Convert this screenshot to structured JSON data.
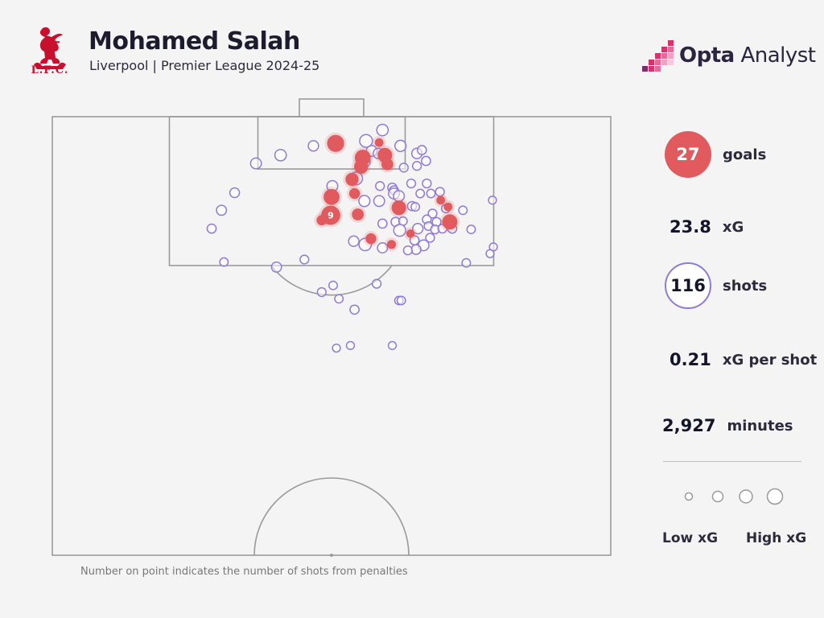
{
  "header": {
    "crest_text": "L.F.C.",
    "player_name": "Mohamed Salah",
    "subtitle": "Liverpool | Premier League 2024-25",
    "brand": {
      "part1": "Opta",
      "part2": " Analyst"
    }
  },
  "stats": {
    "goals_value": "27",
    "goals_label": "goals",
    "xg_value": "23.8",
    "xg_label": "xG",
    "shots_value": "116",
    "shots_label": "shots",
    "xg_per_shot_value": "0.21",
    "xg_per_shot_label": "xG per shot",
    "minutes_value": "2,927",
    "minutes_label": "minutes"
  },
  "legend": {
    "low_label": "Low xG",
    "high_label": "High xG"
  },
  "footnote": "Number on point indicates the number of shots from penalties",
  "colors": {
    "goal": "#e05a5e",
    "miss": "#8f7bd6",
    "pitch_line": "#9a9a9a",
    "brand_pink": "#d6336c"
  },
  "chart_data": {
    "type": "scatter",
    "title": "Mohamed Salah",
    "subtitle": "Liverpool | Premier League 2024-25",
    "xlabel": "",
    "ylabel": "",
    "pitch": {
      "view": "attacking half",
      "width_m": 68,
      "length_m": 52.5
    },
    "units": "x = metres across pitch from left touchline, y = metres from goal line, xg = expected goals per shot",
    "series": [
      {
        "name": "goals",
        "points": [
          {
            "x": 34.5,
            "y": 3.2,
            "xg": 0.55
          },
          {
            "x": 37.8,
            "y": 4.9,
            "xg": 0.45
          },
          {
            "x": 40.5,
            "y": 4.6,
            "xg": 0.35
          },
          {
            "x": 40.8,
            "y": 5.7,
            "xg": 0.18
          },
          {
            "x": 39.8,
            "y": 3.1,
            "xg": 0.05
          },
          {
            "x": 37.6,
            "y": 6.0,
            "xg": 0.3
          },
          {
            "x": 36.5,
            "y": 7.5,
            "xg": 0.25
          },
          {
            "x": 34.0,
            "y": 9.6,
            "xg": 0.45
          },
          {
            "x": 36.8,
            "y": 9.2,
            "xg": 0.12
          },
          {
            "x": 42.2,
            "y": 10.9,
            "xg": 0.35
          },
          {
            "x": 33.9,
            "y": 11.8,
            "xg": 0.76,
            "label": "9"
          },
          {
            "x": 32.8,
            "y": 12.4,
            "xg": 0.1
          },
          {
            "x": 37.2,
            "y": 11.7,
            "xg": 0.18
          },
          {
            "x": 47.3,
            "y": 10.0,
            "xg": 0.05
          },
          {
            "x": 48.2,
            "y": 10.8,
            "xg": 0.05
          },
          {
            "x": 48.4,
            "y": 12.6,
            "xg": 0.4
          },
          {
            "x": 43.6,
            "y": 14.0,
            "xg": 0.04
          },
          {
            "x": 38.8,
            "y": 14.6,
            "xg": 0.12
          },
          {
            "x": 41.3,
            "y": 15.3,
            "xg": 0.06
          }
        ]
      },
      {
        "name": "shots",
        "points": [
          {
            "x": 40.2,
            "y": 1.6,
            "xg": 0.15
          },
          {
            "x": 38.2,
            "y": 2.9,
            "xg": 0.22
          },
          {
            "x": 42.4,
            "y": 3.5,
            "xg": 0.14
          },
          {
            "x": 31.8,
            "y": 3.5,
            "xg": 0.1
          },
          {
            "x": 27.8,
            "y": 4.6,
            "xg": 0.15
          },
          {
            "x": 38.9,
            "y": 4.1,
            "xg": 0.12
          },
          {
            "x": 39.7,
            "y": 4.4,
            "xg": 0.1
          },
          {
            "x": 44.4,
            "y": 4.4,
            "xg": 0.1
          },
          {
            "x": 45.0,
            "y": 4.0,
            "xg": 0.06
          },
          {
            "x": 45.5,
            "y": 5.3,
            "xg": 0.06
          },
          {
            "x": 38.1,
            "y": 5.4,
            "xg": 0.09
          },
          {
            "x": 42.8,
            "y": 6.1,
            "xg": 0.05
          },
          {
            "x": 44.4,
            "y": 5.9,
            "xg": 0.05
          },
          {
            "x": 37.0,
            "y": 7.4,
            "xg": 0.22
          },
          {
            "x": 34.1,
            "y": 8.3,
            "xg": 0.12
          },
          {
            "x": 39.9,
            "y": 8.3,
            "xg": 0.05
          },
          {
            "x": 41.4,
            "y": 8.5,
            "xg": 0.06
          },
          {
            "x": 41.6,
            "y": 8.8,
            "xg": 0.05
          },
          {
            "x": 43.7,
            "y": 8.0,
            "xg": 0.05
          },
          {
            "x": 45.6,
            "y": 8.0,
            "xg": 0.05
          },
          {
            "x": 41.6,
            "y": 9.2,
            "xg": 0.12
          },
          {
            "x": 42.2,
            "y": 9.5,
            "xg": 0.12
          },
          {
            "x": 44.8,
            "y": 9.2,
            "xg": 0.04
          },
          {
            "x": 46.1,
            "y": 9.2,
            "xg": 0.04
          },
          {
            "x": 47.2,
            "y": 9.0,
            "xg": 0.05
          },
          {
            "x": 38.0,
            "y": 10.1,
            "xg": 0.14
          },
          {
            "x": 39.8,
            "y": 10.1,
            "xg": 0.12
          },
          {
            "x": 43.8,
            "y": 10.7,
            "xg": 0.06
          },
          {
            "x": 44.2,
            "y": 10.8,
            "xg": 0.04
          },
          {
            "x": 47.9,
            "y": 11.0,
            "xg": 0.04
          },
          {
            "x": 50.0,
            "y": 11.2,
            "xg": 0.04
          },
          {
            "x": 46.3,
            "y": 11.6,
            "xg": 0.05
          },
          {
            "x": 41.8,
            "y": 12.6,
            "xg": 0.06
          },
          {
            "x": 42.7,
            "y": 12.5,
            "xg": 0.04
          },
          {
            "x": 45.6,
            "y": 12.3,
            "xg": 0.05
          },
          {
            "x": 46.8,
            "y": 12.6,
            "xg": 0.05
          },
          {
            "x": 40.2,
            "y": 12.8,
            "xg": 0.06
          },
          {
            "x": 42.3,
            "y": 13.6,
            "xg": 0.18
          },
          {
            "x": 44.5,
            "y": 13.4,
            "xg": 0.1
          },
          {
            "x": 45.8,
            "y": 13.1,
            "xg": 0.04
          },
          {
            "x": 46.6,
            "y": 13.5,
            "xg": 0.05
          },
          {
            "x": 47.5,
            "y": 13.4,
            "xg": 0.05
          },
          {
            "x": 48.7,
            "y": 13.4,
            "xg": 0.06
          },
          {
            "x": 51.0,
            "y": 13.5,
            "xg": 0.04
          },
          {
            "x": 44.1,
            "y": 14.8,
            "xg": 0.06
          },
          {
            "x": 46.0,
            "y": 14.5,
            "xg": 0.05
          },
          {
            "x": 45.2,
            "y": 15.4,
            "xg": 0.12
          },
          {
            "x": 44.3,
            "y": 15.9,
            "xg": 0.08
          },
          {
            "x": 36.7,
            "y": 14.9,
            "xg": 0.1
          },
          {
            "x": 38.1,
            "y": 15.3,
            "xg": 0.2
          },
          {
            "x": 40.2,
            "y": 15.7,
            "xg": 0.09
          },
          {
            "x": 43.3,
            "y": 16.0,
            "xg": 0.05
          },
          {
            "x": 24.8,
            "y": 5.6,
            "xg": 0.12
          },
          {
            "x": 22.2,
            "y": 9.1,
            "xg": 0.08
          },
          {
            "x": 20.6,
            "y": 11.2,
            "xg": 0.09
          },
          {
            "x": 19.4,
            "y": 13.4,
            "xg": 0.06
          },
          {
            "x": 53.6,
            "y": 10.0,
            "xg": 0.03
          },
          {
            "x": 53.7,
            "y": 15.6,
            "xg": 0.03
          },
          {
            "x": 53.3,
            "y": 16.4,
            "xg": 0.03
          },
          {
            "x": 50.4,
            "y": 17.5,
            "xg": 0.04
          },
          {
            "x": 20.9,
            "y": 17.4,
            "xg": 0.04
          },
          {
            "x": 27.3,
            "y": 18.0,
            "xg": 0.09
          },
          {
            "x": 30.7,
            "y": 17.1,
            "xg": 0.05
          },
          {
            "x": 32.8,
            "y": 21.0,
            "xg": 0.05
          },
          {
            "x": 34.2,
            "y": 20.2,
            "xg": 0.04
          },
          {
            "x": 34.9,
            "y": 21.8,
            "xg": 0.04
          },
          {
            "x": 39.5,
            "y": 20.0,
            "xg": 0.05
          },
          {
            "x": 42.2,
            "y": 22.0,
            "xg": 0.04
          },
          {
            "x": 42.5,
            "y": 22.0,
            "xg": 0.04
          },
          {
            "x": 36.8,
            "y": 23.1,
            "xg": 0.06
          },
          {
            "x": 36.3,
            "y": 27.4,
            "xg": 0.03
          },
          {
            "x": 41.4,
            "y": 27.4,
            "xg": 0.03
          },
          {
            "x": 34.6,
            "y": 27.7,
            "xg": 0.03
          }
        ]
      }
    ],
    "legend": {
      "labels": [
        "Low xG",
        "High xG"
      ],
      "placement": "bottom-right"
    }
  }
}
